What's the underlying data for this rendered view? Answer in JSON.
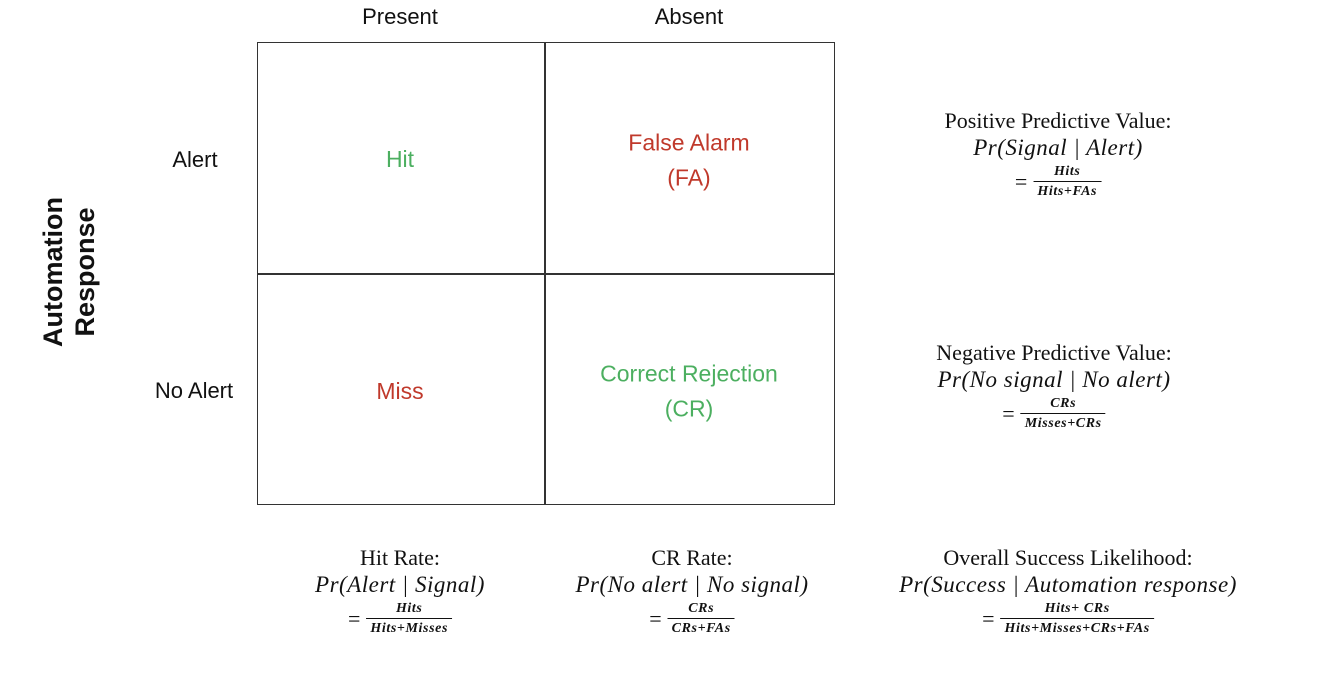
{
  "columns": {
    "present": "Present",
    "absent": "Absent"
  },
  "rows": {
    "alert": "Alert",
    "no_alert": "No Alert"
  },
  "axis_title": {
    "line1": "Automation",
    "line2": "Response"
  },
  "cells": {
    "hit": {
      "text": "Hit",
      "color": "#4caf60"
    },
    "false_alarm": {
      "line1": "False Alarm",
      "line2": "(FA)",
      "color": "#c0392b"
    },
    "miss": {
      "text": "Miss",
      "color": "#c0392b"
    },
    "correct_rejection": {
      "line1": "Correct Rejection",
      "line2": "(CR)",
      "color": "#4caf60"
    }
  },
  "formulas": {
    "ppv": {
      "title": "Positive Predictive Value:",
      "prob": "Pr(Signal | Alert)",
      "eq": "=",
      "num": "Hits",
      "den": "Hits+FAs"
    },
    "npv": {
      "title": "Negative Predictive Value:",
      "prob": "Pr(No signal | No alert)",
      "eq": "=",
      "num": "CRs",
      "den": "Misses+CRs"
    },
    "hit_rate": {
      "title": "Hit Rate:",
      "prob": "Pr(Alert | Signal)",
      "eq": "=",
      "num": "Hits",
      "den": "Hits+Misses"
    },
    "cr_rate": {
      "title": "CR Rate:",
      "prob": "Pr(No alert | No signal)",
      "eq": "=",
      "num": "CRs",
      "den": "CRs+FAs"
    },
    "overall": {
      "title": "Overall Success Likelihood:",
      "prob": "Pr(Success | Automation response)",
      "eq": "=",
      "num": "Hits+ CRs",
      "den": "Hits+Misses+CRs+FAs"
    }
  }
}
